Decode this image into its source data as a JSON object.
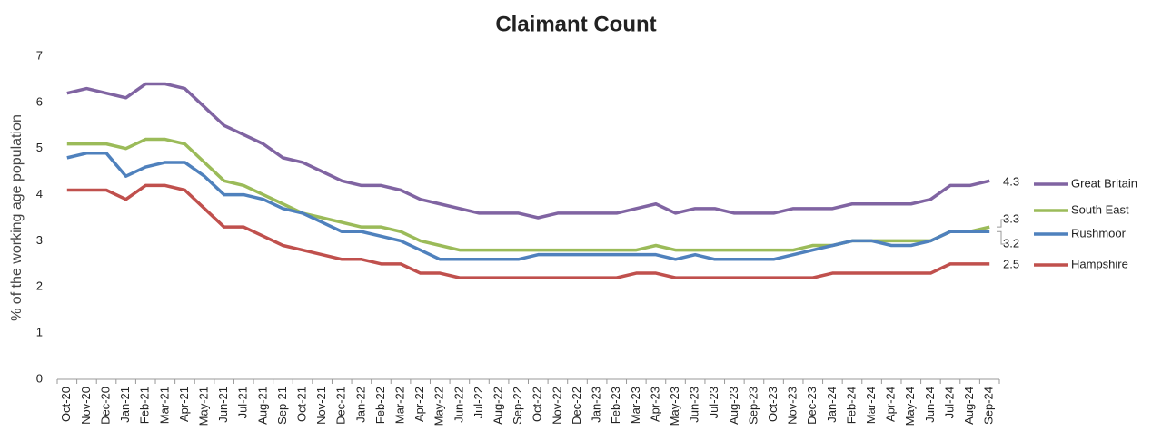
{
  "chart_data": {
    "type": "line",
    "title": "Claimant Count",
    "y_label": "% of the working age population",
    "categories": [
      "Oct-20",
      "Nov-20",
      "Dec-20",
      "Jan-21",
      "Feb-21",
      "Mar-21",
      "Apr-21",
      "May-21",
      "Jun-21",
      "Jul-21",
      "Aug-21",
      "Sep-21",
      "Oct-21",
      "Nov-21",
      "Dec-21",
      "Jan-22",
      "Feb-22",
      "Mar-22",
      "Apr-22",
      "May-22",
      "Jun-22",
      "Jul-22",
      "Aug-22",
      "Sep-22",
      "Oct-22",
      "Nov-22",
      "Dec-22",
      "Jan-23",
      "Feb-23",
      "Mar-23",
      "Apr-23",
      "May-23",
      "Jun-23",
      "Jul-23",
      "Aug-23",
      "Sep-23",
      "Oct-23",
      "Nov-23",
      "Dec-23",
      "Jan-24",
      "Feb-24",
      "Mar-24",
      "Apr-24",
      "May-24",
      "Jun-24",
      "Jul-24",
      "Aug-24",
      "Sep-24"
    ],
    "series": [
      {
        "name": "Great Britain",
        "color": "#8064a2",
        "values": [
          6.2,
          6.3,
          6.2,
          6.1,
          6.4,
          6.4,
          6.3,
          5.9,
          5.5,
          5.3,
          5.1,
          4.8,
          4.7,
          4.5,
          4.3,
          4.2,
          4.2,
          4.1,
          3.9,
          3.8,
          3.7,
          3.6,
          3.6,
          3.6,
          3.5,
          3.6,
          3.6,
          3.6,
          3.6,
          3.7,
          3.8,
          3.6,
          3.7,
          3.7,
          3.6,
          3.6,
          3.6,
          3.7,
          3.7,
          3.7,
          3.8,
          3.8,
          3.8,
          3.8,
          3.9,
          4.2,
          4.2,
          4.3
        ]
      },
      {
        "name": "South East",
        "color": "#9bbb59",
        "values": [
          5.1,
          5.1,
          5.1,
          5.0,
          5.2,
          5.2,
          5.1,
          4.7,
          4.3,
          4.2,
          4.0,
          3.8,
          3.6,
          3.5,
          3.4,
          3.3,
          3.3,
          3.2,
          3.0,
          2.9,
          2.8,
          2.8,
          2.8,
          2.8,
          2.8,
          2.8,
          2.8,
          2.8,
          2.8,
          2.8,
          2.9,
          2.8,
          2.8,
          2.8,
          2.8,
          2.8,
          2.8,
          2.8,
          2.9,
          2.9,
          3.0,
          3.0,
          3.0,
          3.0,
          3.0,
          3.2,
          3.2,
          3.3
        ]
      },
      {
        "name": "Rushmoor",
        "color": "#4f81bd",
        "values": [
          4.8,
          4.9,
          4.9,
          4.4,
          4.6,
          4.7,
          4.7,
          4.4,
          4.0,
          4.0,
          3.9,
          3.7,
          3.6,
          3.4,
          3.2,
          3.2,
          3.1,
          3.0,
          2.8,
          2.6,
          2.6,
          2.6,
          2.6,
          2.6,
          2.7,
          2.7,
          2.7,
          2.7,
          2.7,
          2.7,
          2.7,
          2.6,
          2.7,
          2.6,
          2.6,
          2.6,
          2.6,
          2.7,
          2.8,
          2.9,
          3.0,
          3.0,
          2.9,
          2.9,
          3.0,
          3.2,
          3.2,
          3.2
        ]
      },
      {
        "name": "Hampshire",
        "color": "#c0504d",
        "values": [
          4.1,
          4.1,
          4.1,
          3.9,
          4.2,
          4.2,
          4.1,
          3.7,
          3.3,
          3.3,
          3.1,
          2.9,
          2.8,
          2.7,
          2.6,
          2.6,
          2.5,
          2.5,
          2.3,
          2.3,
          2.2,
          2.2,
          2.2,
          2.2,
          2.2,
          2.2,
          2.2,
          2.2,
          2.2,
          2.3,
          2.3,
          2.2,
          2.2,
          2.2,
          2.2,
          2.2,
          2.2,
          2.2,
          2.2,
          2.3,
          2.3,
          2.3,
          2.3,
          2.3,
          2.3,
          2.5,
          2.5,
          2.5
        ]
      }
    ],
    "ylim": [
      0,
      7
    ],
    "yticks": [
      0,
      1,
      2,
      3,
      4,
      5,
      6,
      7
    ],
    "grid": false,
    "legend": "right"
  }
}
